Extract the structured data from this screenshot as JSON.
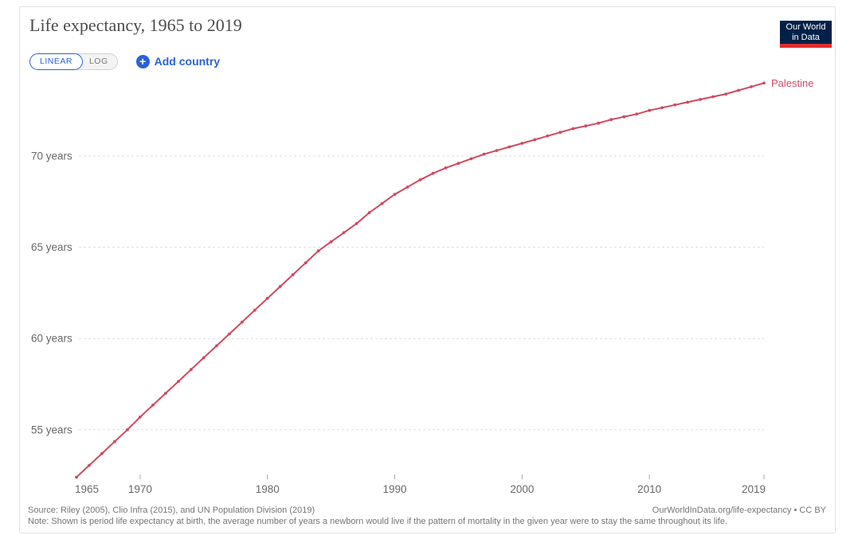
{
  "header": {
    "title": "Life expectancy, 1965 to 2019",
    "logo": {
      "line1": "Our World",
      "line2": "in Data"
    }
  },
  "controls": {
    "linear_label": "LINEAR",
    "log_label": "LOG",
    "plus_icon": "+",
    "add_country_label": "Add country"
  },
  "chart_data": {
    "type": "line",
    "title": "Life expectancy, 1965 to 2019",
    "xlabel": "",
    "ylabel": "",
    "xlim": [
      1965,
      2019
    ],
    "ylim": [
      51.5,
      75.5
    ],
    "grid": "horizontal-dashed",
    "legend_position": "end-of-line-label",
    "x": [
      1965,
      1966,
      1967,
      1968,
      1969,
      1970,
      1971,
      1972,
      1973,
      1974,
      1975,
      1976,
      1977,
      1978,
      1979,
      1980,
      1981,
      1982,
      1983,
      1984,
      1985,
      1986,
      1987,
      1988,
      1989,
      1990,
      1991,
      1992,
      1993,
      1994,
      1995,
      1996,
      1997,
      1998,
      1999,
      2000,
      2001,
      2002,
      2003,
      2004,
      2005,
      2006,
      2007,
      2008,
      2009,
      2010,
      2011,
      2012,
      2013,
      2014,
      2015,
      2016,
      2017,
      2018,
      2019
    ],
    "series": [
      {
        "name": "Palestine",
        "color": "#d0495e",
        "values": [
          52.4,
          53.05,
          53.7,
          54.35,
          55.0,
          55.7,
          56.35,
          57.0,
          57.65,
          58.3,
          58.95,
          59.6,
          60.25,
          60.9,
          61.55,
          62.2,
          62.85,
          63.5,
          64.15,
          64.8,
          65.3,
          65.8,
          66.3,
          66.9,
          67.4,
          67.9,
          68.3,
          68.7,
          69.05,
          69.35,
          69.6,
          69.85,
          70.1,
          70.3,
          70.5,
          70.7,
          70.9,
          71.1,
          71.3,
          71.5,
          71.65,
          71.8,
          72.0,
          72.15,
          72.3,
          72.5,
          72.65,
          72.8,
          72.95,
          73.1,
          73.25,
          73.4,
          73.6,
          73.8,
          74.0
        ]
      }
    ],
    "y_ticks": [
      {
        "value": 55,
        "label": "55 years"
      },
      {
        "value": 60,
        "label": "60 years"
      },
      {
        "value": 65,
        "label": "65 years"
      },
      {
        "value": 70,
        "label": "70 years"
      }
    ],
    "x_ticks": [
      {
        "year": 1965,
        "label": "1965",
        "tick_mark": false,
        "anchor": "start"
      },
      {
        "year": 1970,
        "label": "1970",
        "tick_mark": true,
        "anchor": "middle"
      },
      {
        "year": 1980,
        "label": "1980",
        "tick_mark": true,
        "anchor": "middle"
      },
      {
        "year": 1990,
        "label": "1990",
        "tick_mark": true,
        "anchor": "middle"
      },
      {
        "year": 2000,
        "label": "2000",
        "tick_mark": true,
        "anchor": "middle"
      },
      {
        "year": 2010,
        "label": "2010",
        "tick_mark": true,
        "anchor": "middle"
      },
      {
        "year": 2019,
        "label": "2019",
        "tick_mark": true,
        "anchor": "end"
      }
    ]
  },
  "colors": {
    "line": "#d0495e",
    "accent_blue": "#2962d9",
    "logo_navy": "#002147",
    "logo_red": "#e02d2d",
    "gridline": "#dddddd",
    "tick_mark": "#a8a8a8",
    "axis_text": "#686868",
    "title_text": "#4c4c4c",
    "footer_text": "#757575"
  },
  "footer": {
    "source": "Source: Riley (2005), Clio Infra (2015), and UN Population Division (2019)",
    "note": "Note: Shown is period life expectancy at birth, the average number of years a newborn would live if the pattern of mortality in the given year were to stay the same throughout its life.",
    "credit": "OurWorldInData.org/life-expectancy • CC BY"
  }
}
